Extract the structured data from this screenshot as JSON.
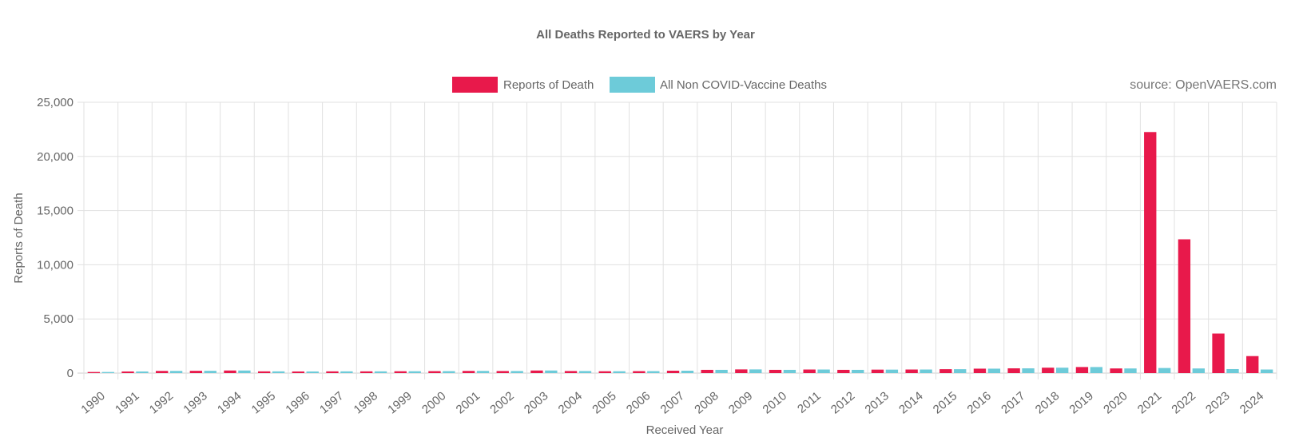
{
  "source_note": "source: OpenVAERS.com",
  "chart_data": {
    "type": "bar",
    "title": "All Deaths Reported to VAERS by Year",
    "xlabel": "Received Year",
    "ylabel": "Reports of Death",
    "ylim": [
      0,
      25000
    ],
    "yticks": [
      0,
      5000,
      10000,
      15000,
      20000,
      25000
    ],
    "ytick_labels": [
      "0",
      "5,000",
      "10,000",
      "15,000",
      "20,000",
      "25,000"
    ],
    "grid": true,
    "legend_position": "top-center",
    "categories": [
      "1990",
      "1991",
      "1992",
      "1993",
      "1994",
      "1995",
      "1996",
      "1997",
      "1998",
      "1999",
      "2000",
      "2001",
      "2002",
      "2003",
      "2004",
      "2005",
      "2006",
      "2007",
      "2008",
      "2009",
      "2010",
      "2011",
      "2012",
      "2013",
      "2014",
      "2015",
      "2016",
      "2017",
      "2018",
      "2019",
      "2020",
      "2021",
      "2022",
      "2023",
      "2024"
    ],
    "series": [
      {
        "name": "Reports of Death",
        "color": "#e8194b",
        "values": [
          100,
          150,
          200,
          210,
          240,
          160,
          150,
          160,
          160,
          170,
          180,
          200,
          190,
          240,
          190,
          170,
          180,
          220,
          300,
          340,
          300,
          330,
          300,
          320,
          330,
          360,
          410,
          440,
          500,
          560,
          430,
          22250,
          12350,
          3650,
          1570
        ]
      },
      {
        "name": "All Non COVID-Vaccine Deaths",
        "color": "#6dcbd9",
        "values": [
          100,
          150,
          200,
          210,
          240,
          160,
          150,
          160,
          160,
          170,
          180,
          200,
          190,
          240,
          190,
          170,
          180,
          220,
          300,
          340,
          300,
          330,
          300,
          320,
          330,
          360,
          410,
          440,
          500,
          560,
          430,
          470,
          430,
          370,
          330
        ]
      }
    ]
  }
}
